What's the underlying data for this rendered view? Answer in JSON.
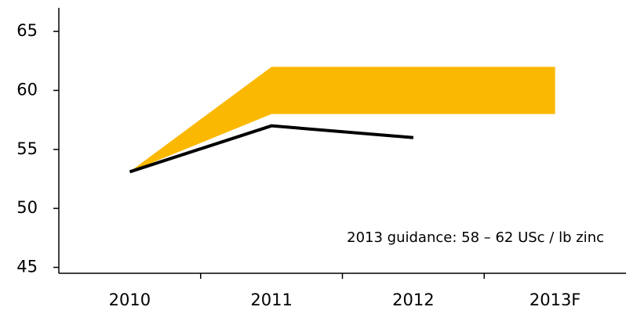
{
  "chart_data": {
    "type": "line",
    "categories": [
      "2010",
      "2011",
      "2012",
      "2013F"
    ],
    "band": {
      "lower": [
        53.1,
        58,
        58,
        58
      ],
      "upper": [
        53.1,
        62,
        62,
        62
      ],
      "color": "#fbb800"
    },
    "series": [
      {
        "color": "#000000",
        "values": [
          53.1,
          57,
          56,
          null
        ]
      }
    ],
    "ylim": [
      44.5,
      67
    ],
    "yticks": [
      45,
      50,
      55,
      60,
      65
    ],
    "annotation": "2013 guidance: 58 – 62 USc / lb zinc"
  }
}
